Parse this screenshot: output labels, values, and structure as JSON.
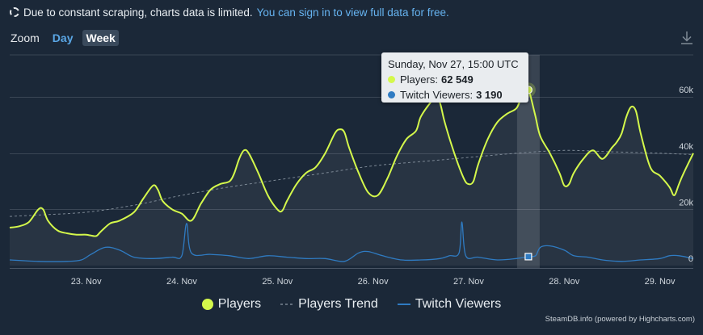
{
  "notice": {
    "message": "Due to constant scraping, charts data is limited.",
    "link": "You can sign in to view full data for free."
  },
  "zoom": {
    "label": "Zoom",
    "day": "Day",
    "week": "Week",
    "selected": "Week"
  },
  "icons": {
    "loading": "dashed-circle-icon",
    "download": "download-icon"
  },
  "colors": {
    "background": "#1b2838",
    "players": "#d4f84b",
    "twitch": "#2f7bc2",
    "trend": "#7d8996",
    "grid": "#3a4655",
    "link": "#66b3f0"
  },
  "tooltip": {
    "date": "Sunday, Nov 27, 15:00 UTC",
    "players_label": "Players:",
    "players_value": "62 549",
    "twitch_label": "Twitch Viewers:",
    "twitch_value": "3 190"
  },
  "legend": {
    "players": "Players",
    "trend": "Players Trend",
    "twitch": "Twitch Viewers"
  },
  "credits": "SteamDB.info (powered by Highcharts.com)",
  "chart_data": {
    "type": "line",
    "x_unit": "days (Nov)",
    "xlim": [
      22.2,
      29.35
    ],
    "ylim": [
      0,
      75000
    ],
    "x_ticks": [
      23,
      24,
      25,
      26,
      27,
      28,
      29
    ],
    "x_tick_labels": [
      "23. Nov",
      "24. Nov",
      "25. Nov",
      "26. Nov",
      "27. Nov",
      "28. Nov",
      "29. Nov"
    ],
    "y_ticks": [
      0,
      20000,
      40000,
      60000
    ],
    "y_tick_labels": [
      "0",
      "20k",
      "40k",
      "60k"
    ],
    "grid": true,
    "legend_position": "bottom-center",
    "highlight": {
      "x": 27.625,
      "players": 62549,
      "twitch": 3190
    },
    "series": [
      {
        "name": "Players",
        "type": "area",
        "points": [
          [
            22.2,
            13500
          ],
          [
            22.3,
            14000
          ],
          [
            22.4,
            15500
          ],
          [
            22.5,
            20000
          ],
          [
            22.55,
            20000
          ],
          [
            22.6,
            16000
          ],
          [
            22.7,
            12500
          ],
          [
            22.8,
            11500
          ],
          [
            22.9,
            11000
          ],
          [
            23.0,
            11000
          ],
          [
            23.1,
            10500
          ],
          [
            23.15,
            12000
          ],
          [
            23.25,
            15000
          ],
          [
            23.35,
            16000
          ],
          [
            23.5,
            19000
          ],
          [
            23.6,
            24000
          ],
          [
            23.7,
            28500
          ],
          [
            23.75,
            27000
          ],
          [
            23.8,
            23000
          ],
          [
            23.9,
            20000
          ],
          [
            24.0,
            18500
          ],
          [
            24.1,
            16000
          ],
          [
            24.2,
            22000
          ],
          [
            24.3,
            27000
          ],
          [
            24.4,
            29000
          ],
          [
            24.5,
            30000
          ],
          [
            24.55,
            33000
          ],
          [
            24.6,
            38000
          ],
          [
            24.65,
            41000
          ],
          [
            24.7,
            40000
          ],
          [
            24.8,
            33000
          ],
          [
            24.9,
            25000
          ],
          [
            25.0,
            20000
          ],
          [
            25.05,
            19500
          ],
          [
            25.1,
            23000
          ],
          [
            25.2,
            29000
          ],
          [
            25.3,
            33000
          ],
          [
            25.4,
            35000
          ],
          [
            25.5,
            40000
          ],
          [
            25.6,
            47000
          ],
          [
            25.65,
            48500
          ],
          [
            25.7,
            47500
          ],
          [
            25.75,
            42000
          ],
          [
            25.85,
            33000
          ],
          [
            25.95,
            26000
          ],
          [
            26.05,
            25000
          ],
          [
            26.15,
            31000
          ],
          [
            26.25,
            39000
          ],
          [
            26.35,
            45000
          ],
          [
            26.45,
            48000
          ],
          [
            26.5,
            53000
          ],
          [
            26.6,
            58000
          ],
          [
            26.65,
            59500
          ],
          [
            26.7,
            58000
          ],
          [
            26.75,
            51000
          ],
          [
            26.85,
            40000
          ],
          [
            26.95,
            31000
          ],
          [
            27.0,
            29000
          ],
          [
            27.05,
            30000
          ],
          [
            27.1,
            36000
          ],
          [
            27.2,
            45000
          ],
          [
            27.3,
            51000
          ],
          [
            27.4,
            54000
          ],
          [
            27.5,
            56000
          ],
          [
            27.55,
            60000
          ],
          [
            27.6,
            65500
          ],
          [
            27.625,
            62549
          ],
          [
            27.65,
            60000
          ],
          [
            27.7,
            53000
          ],
          [
            27.75,
            46000
          ],
          [
            27.85,
            40000
          ],
          [
            27.95,
            33000
          ],
          [
            28.0,
            28500
          ],
          [
            28.05,
            29000
          ],
          [
            28.1,
            33000
          ],
          [
            28.2,
            38000
          ],
          [
            28.3,
            41000
          ],
          [
            28.4,
            38000
          ],
          [
            28.5,
            42000
          ],
          [
            28.55,
            44000
          ],
          [
            28.6,
            47000
          ],
          [
            28.65,
            53000
          ],
          [
            28.7,
            56500
          ],
          [
            28.75,
            55000
          ],
          [
            28.8,
            47000
          ],
          [
            28.9,
            35000
          ],
          [
            29.0,
            32000
          ],
          [
            29.1,
            28000
          ],
          [
            29.15,
            25000
          ],
          [
            29.2,
            29000
          ],
          [
            29.25,
            33000
          ],
          [
            29.35,
            40000
          ]
        ]
      },
      {
        "name": "Players Trend",
        "type": "line",
        "points": [
          [
            22.2,
            17500
          ],
          [
            22.5,
            18000
          ],
          [
            23.0,
            19000
          ],
          [
            23.5,
            21500
          ],
          [
            24.0,
            25000
          ],
          [
            24.5,
            28000
          ],
          [
            25.0,
            30500
          ],
          [
            25.5,
            33000
          ],
          [
            26.0,
            35500
          ],
          [
            26.5,
            37000
          ],
          [
            27.0,
            38500
          ],
          [
            27.5,
            40000
          ],
          [
            28.0,
            41000
          ],
          [
            28.5,
            40500
          ],
          [
            29.0,
            40000
          ],
          [
            29.35,
            39500
          ]
        ]
      },
      {
        "name": "Twitch Viewers",
        "type": "line",
        "points": [
          [
            22.2,
            2000
          ],
          [
            22.5,
            1500
          ],
          [
            22.8,
            1500
          ],
          [
            22.95,
            2000
          ],
          [
            23.05,
            4000
          ],
          [
            23.2,
            6500
          ],
          [
            23.35,
            5500
          ],
          [
            23.5,
            3000
          ],
          [
            23.7,
            2500
          ],
          [
            23.9,
            3000
          ],
          [
            24.0,
            3500
          ],
          [
            24.05,
            15000
          ],
          [
            24.1,
            4500
          ],
          [
            24.3,
            4000
          ],
          [
            24.5,
            3500
          ],
          [
            24.7,
            2500
          ],
          [
            24.9,
            3500
          ],
          [
            25.1,
            3000
          ],
          [
            25.3,
            2500
          ],
          [
            25.5,
            2500
          ],
          [
            25.7,
            1500
          ],
          [
            25.85,
            4500
          ],
          [
            25.95,
            5000
          ],
          [
            26.1,
            3500
          ],
          [
            26.3,
            2000
          ],
          [
            26.5,
            2000
          ],
          [
            26.7,
            2500
          ],
          [
            26.8,
            3500
          ],
          [
            26.9,
            4500
          ],
          [
            26.93,
            15500
          ],
          [
            26.97,
            3500
          ],
          [
            27.1,
            3000
          ],
          [
            27.3,
            2000
          ],
          [
            27.5,
            2500
          ],
          [
            27.625,
            3190
          ],
          [
            27.7,
            3500
          ],
          [
            27.75,
            6500
          ],
          [
            27.85,
            7000
          ],
          [
            28.0,
            5500
          ],
          [
            28.1,
            3500
          ],
          [
            28.25,
            3000
          ],
          [
            28.4,
            2000
          ],
          [
            28.6,
            1500
          ],
          [
            28.8,
            2000
          ],
          [
            29.0,
            2500
          ],
          [
            29.1,
            3500
          ],
          [
            29.2,
            3500
          ],
          [
            29.35,
            2500
          ]
        ]
      }
    ]
  }
}
